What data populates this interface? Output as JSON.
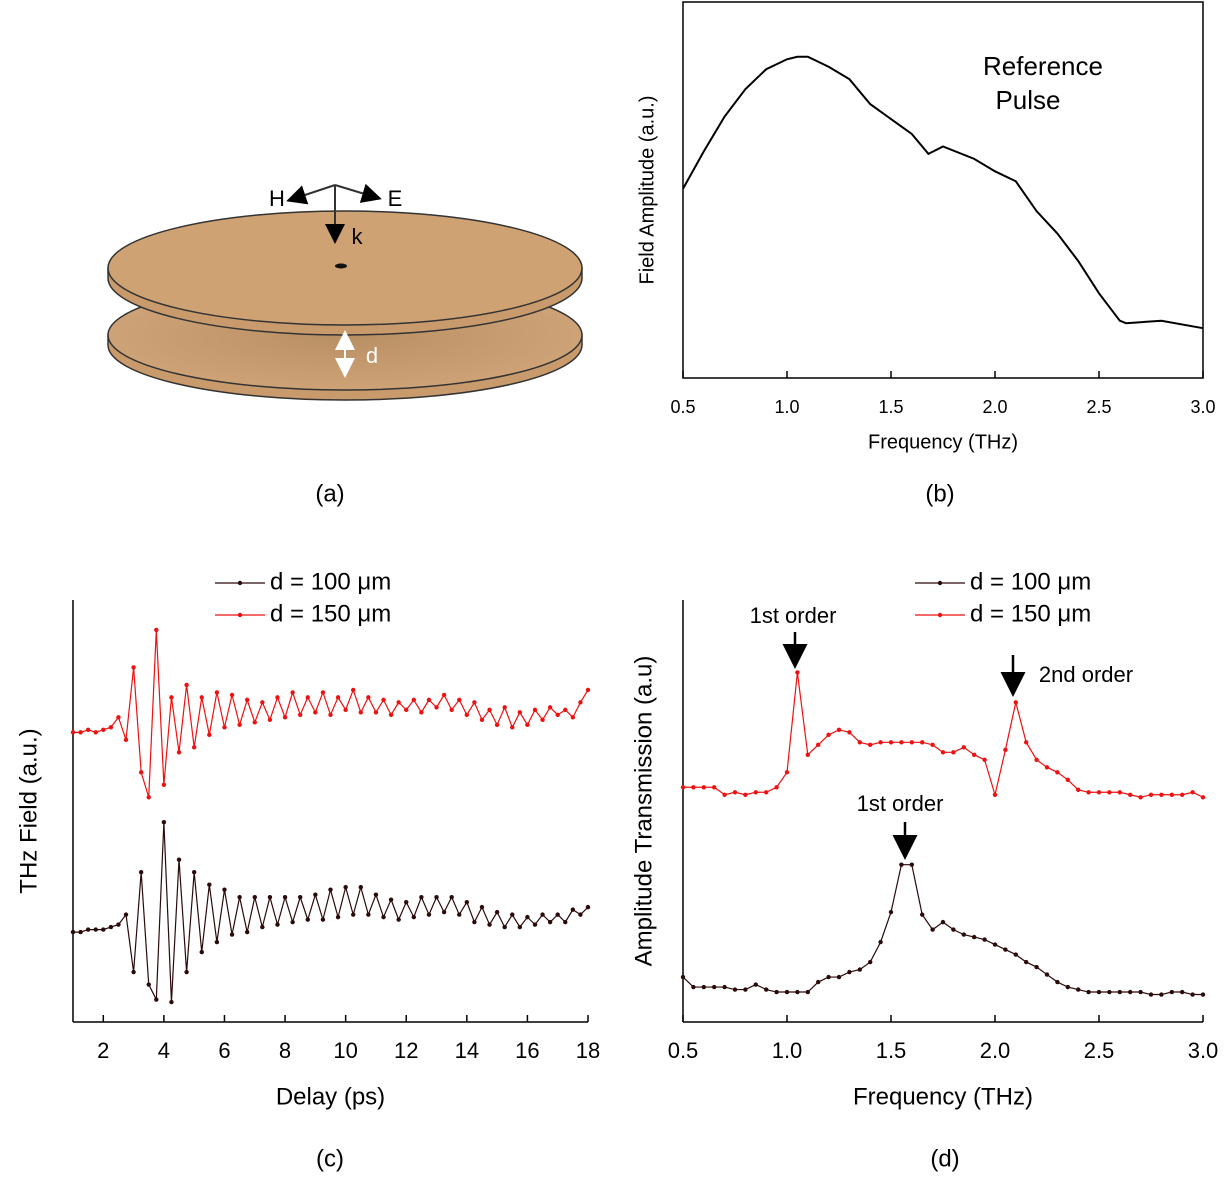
{
  "diagram": {
    "labels": {
      "h": "H",
      "e": "E",
      "k": "k",
      "d": "d"
    },
    "caption": "(a)"
  },
  "chart_data": [
    {
      "type": "line",
      "caption": "(b)",
      "xlabel": "Frequency (THz)",
      "ylabel": "Field Amplitude (a.u.)",
      "annotations": [
        "Reference",
        "Pulse"
      ],
      "x": [
        0.5,
        0.6,
        0.7,
        0.8,
        0.9,
        1.0,
        1.05,
        1.1,
        1.2,
        1.3,
        1.4,
        1.5,
        1.6,
        1.68,
        1.75,
        1.9,
        2.0,
        2.1,
        2.2,
        2.3,
        2.4,
        2.5,
        2.6,
        2.63,
        2.8,
        3.0
      ],
      "values": [
        7.6,
        9.1,
        10.5,
        11.6,
        12.4,
        12.8,
        12.9,
        12.9,
        12.5,
        12.0,
        11.0,
        10.4,
        9.8,
        9.0,
        9.3,
        8.8,
        8.3,
        7.9,
        6.7,
        5.8,
        4.7,
        3.4,
        2.3,
        2.2,
        2.3,
        2.0
      ],
      "color": "#000000",
      "xlim": [
        0.5,
        3.0
      ],
      "ylim": [
        0,
        15.1
      ],
      "xticks": [
        0.5,
        {
          "value": 1,
          "label": "1.0"
        },
        1.5,
        {
          "value": 2,
          "label": "2.0"
        },
        2.5,
        {
          "value": 3,
          "label": "3.0"
        }
      ]
    },
    {
      "type": "line",
      "caption": "(c)",
      "xlabel": "Delay (ps)",
      "ylabel": "THz Field (a.u.)",
      "x": [
        1,
        1.25,
        1.5,
        1.75,
        2,
        2.25,
        2.5,
        2.75,
        3,
        3.25,
        3.5,
        3.75,
        4,
        4.25,
        4.5,
        4.75,
        5,
        5.25,
        5.5,
        5.75,
        6,
        6.25,
        6.5,
        6.75,
        7,
        7.25,
        7.5,
        7.75,
        8,
        8.25,
        8.5,
        8.75,
        9,
        9.25,
        9.5,
        9.75,
        10,
        10.25,
        10.5,
        10.75,
        11,
        11.25,
        11.5,
        11.75,
        12,
        12.25,
        12.5,
        12.75,
        13,
        13.25,
        13.5,
        13.75,
        14,
        14.25,
        14.5,
        14.75,
        15,
        15.25,
        15.5,
        15.75,
        16,
        16.25,
        16.5,
        16.75,
        17,
        17.25,
        17.5,
        17.75,
        18
      ],
      "series": [
        {
          "name": "d = 100 μm",
          "color": "#2b0a0a",
          "values": [
            3.6,
            3.6,
            3.7,
            3.7,
            3.7,
            3.8,
            3.9,
            4.3,
            2.0,
            6.0,
            1.5,
            0.9,
            8.0,
            0.8,
            6.5,
            2.0,
            6.0,
            2.8,
            5.5,
            3.2,
            5.3,
            3.5,
            5.0,
            3.6,
            5.0,
            3.8,
            5.0,
            3.9,
            5.0,
            4.0,
            5.0,
            4.1,
            5.1,
            4.1,
            5.3,
            4.2,
            5.4,
            4.3,
            5.4,
            4.3,
            5.1,
            4.2,
            4.9,
            4.1,
            4.8,
            4.2,
            5.0,
            4.3,
            5.0,
            4.4,
            5.0,
            4.3,
            4.8,
            4.0,
            4.6,
            3.9,
            4.4,
            3.8,
            4.3,
            3.8,
            4.2,
            3.9,
            4.3,
            4.0,
            4.3,
            4.0,
            4.5,
            4.3,
            4.6
          ]
        },
        {
          "name": "d = 150 μm",
          "color": "#ee1111",
          "values": [
            11.6,
            11.6,
            11.7,
            11.6,
            11.7,
            11.8,
            12.2,
            11.3,
            14.2,
            10.0,
            9.0,
            15.7,
            9.5,
            13.0,
            10.8,
            13.5,
            11.0,
            13.0,
            11.5,
            13.2,
            11.8,
            13.1,
            11.9,
            12.9,
            12.0,
            12.8,
            12.1,
            13.0,
            12.2,
            13.2,
            12.3,
            13.0,
            12.4,
            13.2,
            12.3,
            13.0,
            12.5,
            13.3,
            12.4,
            13.0,
            12.4,
            12.9,
            12.3,
            12.8,
            12.5,
            12.9,
            12.4,
            12.9,
            12.6,
            13.1,
            12.5,
            12.9,
            12.3,
            12.8,
            12.1,
            12.5,
            11.9,
            12.6,
            11.8,
            12.4,
            11.9,
            12.5,
            12.1,
            12.6,
            12.3,
            12.5,
            12.2,
            12.8,
            13.3
          ]
        }
      ],
      "xlim": [
        1,
        18
      ],
      "ylim": [
        0,
        16.9
      ],
      "xticks": [
        2,
        4,
        6,
        8,
        10,
        12,
        14,
        16,
        18
      ]
    },
    {
      "type": "line",
      "caption": "(d)",
      "xlabel": "Frequency (THz)",
      "ylabel": "Amplitude Transmission (a.u)",
      "annotations": [
        "1st order",
        "2nd order",
        "1st order"
      ],
      "x": [
        0.5,
        0.55,
        0.6,
        0.65,
        0.7,
        0.75,
        0.8,
        0.85,
        0.9,
        0.95,
        1.0,
        1.05,
        1.1,
        1.15,
        1.2,
        1.25,
        1.3,
        1.35,
        1.4,
        1.45,
        1.5,
        1.55,
        1.6,
        1.65,
        1.7,
        1.75,
        1.8,
        1.85,
        1.9,
        1.95,
        2.0,
        2.05,
        2.1,
        2.15,
        2.2,
        2.25,
        2.3,
        2.35,
        2.4,
        2.45,
        2.5,
        2.55,
        2.6,
        2.65,
        2.7,
        2.75,
        2.8,
        2.85,
        2.9,
        2.95,
        3.0
      ],
      "series": [
        {
          "name": "d = 100 μm",
          "color": "#2b0a0a",
          "values": [
            1.8,
            1.4,
            1.4,
            1.4,
            1.4,
            1.3,
            1.3,
            1.5,
            1.3,
            1.2,
            1.2,
            1.2,
            1.2,
            1.6,
            1.8,
            1.8,
            2.0,
            2.1,
            2.4,
            3.2,
            4.4,
            6.3,
            6.3,
            4.3,
            3.7,
            4.0,
            3.7,
            3.5,
            3.4,
            3.3,
            3.1,
            2.9,
            2.7,
            2.4,
            2.2,
            1.9,
            1.6,
            1.4,
            1.3,
            1.2,
            1.2,
            1.2,
            1.2,
            1.2,
            1.2,
            1.1,
            1.1,
            1.2,
            1.2,
            1.1,
            1.1
          ]
        },
        {
          "name": "d = 150 μm",
          "color": "#ee1111",
          "values": [
            9.4,
            9.4,
            9.4,
            9.4,
            9.1,
            9.2,
            9.1,
            9.2,
            9.2,
            9.4,
            10.0,
            14.0,
            10.7,
            11.1,
            11.5,
            11.7,
            11.6,
            11.2,
            11.1,
            11.2,
            11.2,
            11.2,
            11.2,
            11.2,
            11.1,
            10.8,
            10.8,
            11.0,
            10.7,
            10.5,
            9.1,
            10.9,
            12.8,
            11.2,
            10.5,
            10.2,
            10.0,
            9.7,
            9.3,
            9.2,
            9.2,
            9.2,
            9.2,
            9.1,
            9.0,
            9.1,
            9.1,
            9.1,
            9.1,
            9.2,
            9.0
          ]
        }
      ],
      "xlim": [
        0.5,
        3.0
      ],
      "ylim": [
        0,
        16.9
      ],
      "xticks": [
        0.5,
        {
          "value": 1,
          "label": "1.0"
        },
        1.5,
        {
          "value": 2,
          "label": "2.0"
        },
        2.5,
        {
          "value": 3,
          "label": "3.0"
        }
      ]
    }
  ]
}
